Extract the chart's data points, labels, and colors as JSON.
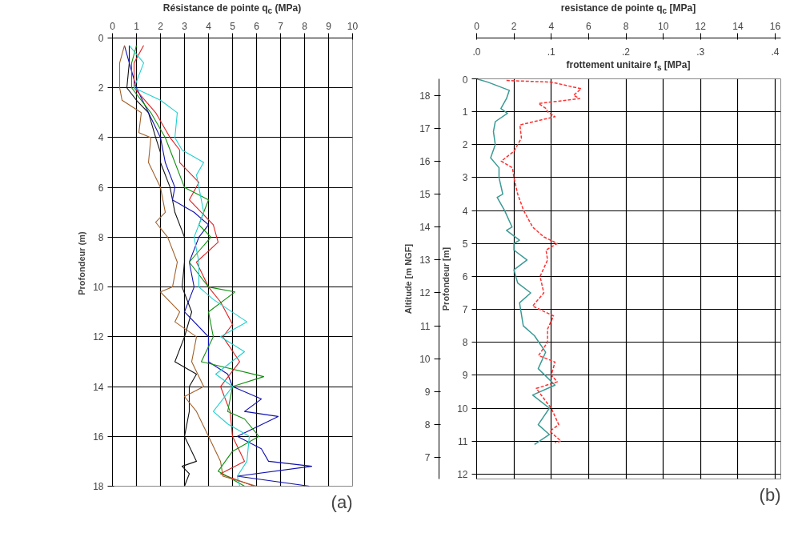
{
  "chart_data": [
    {
      "type": "line",
      "xlabel": "Résistance de pointe  q$_{c}$ (MPa)",
      "ylabel": "Profondeur  (m)",
      "xlim": [
        0,
        10
      ],
      "xticks": [
        0,
        1,
        2,
        3,
        4,
        5,
        6,
        7,
        8,
        9,
        10
      ],
      "ylim": [
        18,
        0
      ],
      "yticks": [
        0,
        2,
        4,
        6,
        8,
        10,
        12,
        14,
        16,
        18
      ],
      "grid": true,
      "annotations": [
        "(a)"
      ],
      "series": [
        {
          "color": "#101010",
          "x": [
            0.7,
            0.7,
            0.6,
            1.0,
            1.5,
            1.8,
            2.0,
            2.0,
            2.4,
            2.6,
            3.0,
            3.0,
            2.9,
            3.3,
            3.0,
            2.6,
            3.5,
            3.2,
            3.2,
            3.0,
            3.5,
            2.9,
            3.2,
            3.0
          ],
          "values": [
            0.3,
            1,
            2,
            2.5,
            3,
            4,
            4.6,
            5,
            6,
            7,
            8,
            9,
            10,
            11,
            12,
            13,
            13.5,
            14,
            15,
            16,
            17,
            17.2,
            17.5,
            18
          ]
        },
        {
          "color": "#1010b0",
          "x": [
            0.5,
            0.7,
            1.0,
            1.5,
            2.0,
            2.2,
            2.6,
            2.5,
            3.4,
            4.0,
            3.6,
            3.2,
            3.4,
            3.0,
            4.0,
            4.0,
            4.8,
            5.0,
            6.2,
            5.5,
            6.9,
            5.2,
            6.2,
            6.5,
            8.3,
            5.2,
            8.2
          ],
          "values": [
            0.3,
            1,
            2,
            3,
            4,
            5,
            6,
            6.5,
            7,
            7.5,
            8,
            9,
            10,
            11,
            12,
            13,
            13.5,
            14,
            14.5,
            15,
            15.2,
            16,
            16.5,
            17,
            17.2,
            17.6,
            18
          ]
        },
        {
          "color": "#e02020",
          "x": [
            1.3,
            0.9,
            0.9,
            1.8,
            2.4,
            2.8,
            2.8,
            3.6,
            3.2,
            4.2,
            4.4,
            3.5,
            4.0,
            4.5,
            5.0,
            4.6,
            5.3,
            4.5,
            4.9,
            5.0,
            5.5,
            4.5,
            5.9
          ],
          "values": [
            0.3,
            1,
            2,
            3,
            4,
            4.5,
            5,
            5.8,
            6.5,
            7.5,
            8.2,
            9,
            10,
            10.6,
            11.5,
            12,
            13,
            14,
            15,
            16,
            17,
            17.5,
            18
          ]
        },
        {
          "color": "#109010",
          "x": [
            1.0,
            0.8,
            0.8,
            1.6,
            2.2,
            2.6,
            3.0,
            4.0,
            3.6,
            4.1,
            3.2,
            4.0,
            5.1,
            4.0,
            4.2,
            3.7,
            6.3,
            5.0,
            4.8,
            5.5,
            6.1,
            5.0,
            4.4,
            5.5
          ],
          "values": [
            0.3,
            1,
            2,
            3,
            4,
            5,
            6,
            6.5,
            7.5,
            8,
            9,
            10,
            10.2,
            11,
            12,
            13,
            13.6,
            14,
            15,
            15.3,
            16,
            16.6,
            17.4,
            18
          ]
        },
        {
          "color": "#20d0d0",
          "x": [
            0.7,
            1.3,
            0.9,
            2.0,
            2.7,
            2.6,
            2.9,
            3.8,
            3.5,
            3.6,
            3.8,
            3.4,
            3.6,
            3.6,
            4.2,
            5.6,
            4.5,
            5.5,
            4.3,
            5.0,
            4.2,
            4.8,
            5.7,
            5.6,
            5.2,
            5.3
          ],
          "values": [
            0.3,
            1,
            2,
            2.5,
            3,
            4,
            4.5,
            5,
            5.5,
            6,
            7,
            8,
            9,
            10,
            10.5,
            11.4,
            12,
            12.6,
            13.5,
            14,
            15,
            15.5,
            16,
            17,
            17.6,
            18
          ]
        },
        {
          "color": "#a0602a",
          "x": [
            0.5,
            0.3,
            0.3,
            0.4,
            1.2,
            1.1,
            1.6,
            1.5,
            2.0,
            2.2,
            1.8,
            2.3,
            2.7,
            2.5,
            2.0,
            2.8,
            2.6,
            3.5,
            3.3,
            3.8,
            3.0,
            3.5,
            4.0,
            4.5,
            4.6,
            6.0
          ],
          "values": [
            0.3,
            1,
            2,
            2.5,
            3,
            3.8,
            4,
            5,
            6,
            7,
            7.4,
            8,
            9,
            10,
            10.2,
            11,
            11.4,
            12,
            13,
            14,
            14.4,
            15,
            16,
            17,
            17.6,
            18
          ]
        }
      ]
    },
    {
      "type": "line",
      "xlabel": "resistance de pointe q$_{c}$ [MPa]",
      "x2label": "frottement unitaire f$_{s}$ [MPa]",
      "ylabel": "Profondeur [m]",
      "y2label": "Altitude [m NGF]",
      "xlim": [
        0,
        16.3
      ],
      "xticks": [
        0,
        2,
        4,
        6,
        8,
        10,
        12,
        14,
        16
      ],
      "x2lim": [
        0,
        0.4075
      ],
      "x2ticks": [
        {
          "value": 0,
          "label": ".0"
        },
        {
          "value": 0.1,
          "label": ".1"
        },
        {
          "value": 0.2,
          "label": ".2"
        },
        {
          "value": 0.3,
          "label": ".3"
        },
        {
          "value": 0.4,
          "label": ".4"
        }
      ],
      "ylim": [
        12.15,
        0
      ],
      "yticks": [
        0,
        1,
        2,
        3,
        4,
        5,
        6,
        7,
        8,
        9,
        10,
        11,
        12
      ],
      "y2lim": [
        6.35,
        18.5
      ],
      "y2ticks": [
        7,
        8,
        9,
        10,
        11,
        12,
        13,
        14,
        15,
        16,
        17,
        18
      ],
      "grid": true,
      "annotations": [
        "(b)"
      ],
      "series": [
        {
          "color": "#3a9a94",
          "line_style": "solid",
          "x": [
            0,
            0.6,
            1.75,
            1.6,
            1.3,
            1.65,
            1.0,
            0.9,
            1.0,
            0.75,
            1.2,
            1.2,
            1.4,
            1.1,
            1.5,
            1.9,
            1.6,
            2.3,
            2.0,
            2.0,
            2.7,
            2.0,
            2.2,
            2.9,
            2.3,
            2.5,
            3.1,
            3.7,
            3.3,
            4.2,
            3.0,
            3.9,
            3.3,
            3.9,
            3.1
          ],
          "values": [
            0,
            0.1,
            0.35,
            0.6,
            0.9,
            1.05,
            1.3,
            1.6,
            2,
            2.4,
            2.7,
            3,
            3.5,
            3.6,
            4,
            4.5,
            4.6,
            4.9,
            5,
            5.2,
            5.5,
            5.8,
            6.2,
            6.5,
            6.8,
            7.5,
            7.8,
            8.3,
            8.8,
            9.3,
            9.6,
            10,
            10.5,
            10.8,
            11.1
          ]
        },
        {
          "color": "#ff3030",
          "line_style": "dashed",
          "axis": "x2",
          "x": [
            0.04,
            0.1,
            0.14,
            0.13,
            0.138,
            0.083,
            0.093,
            0.095,
            0.105,
            0.058,
            0.06,
            0.05,
            0.033,
            0.048,
            0.05,
            0.055,
            0.063,
            0.075,
            0.09,
            0.108,
            0.093,
            0.095,
            0.085,
            0.09,
            0.075,
            0.103,
            0.095,
            0.095,
            0.083,
            0.105,
            0.1,
            0.108,
            0.08,
            0.093,
            0.1,
            0.11,
            0.098,
            0.113,
            0.105
          ],
          "values": [
            0.05,
            0.1,
            0.3,
            0.5,
            0.6,
            0.75,
            0.9,
            1,
            1.15,
            1.4,
            1.8,
            2.2,
            2.5,
            2.7,
            3,
            3.5,
            4,
            4.5,
            4.8,
            5,
            5.2,
            5.5,
            6,
            6.5,
            6.9,
            7.2,
            7.6,
            8,
            8.4,
            8.6,
            9,
            9.2,
            9.4,
            9.8,
            10,
            10.5,
            10.7,
            11,
            11.05
          ]
        }
      ]
    }
  ]
}
